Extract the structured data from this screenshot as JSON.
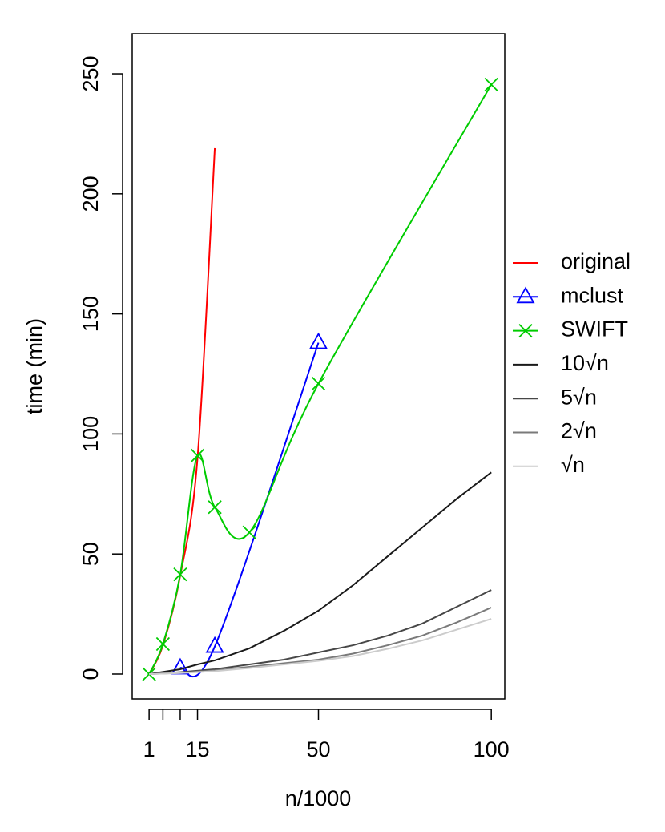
{
  "chart_data": {
    "type": "line",
    "xlabel": "n/1000",
    "ylabel": "time (min)",
    "xlim": [
      -3.9,
      103.9
    ],
    "ylim": [
      -10.35,
      266.7
    ],
    "xticks": [
      1,
      {
        "value": 5,
        "label": null
      },
      {
        "value": 10,
        "label": null
      },
      15,
      50,
      100
    ],
    "yticks": [
      0,
      50,
      100,
      150,
      200,
      250
    ],
    "legend": "right",
    "series": [
      {
        "name": "original",
        "color": "#ff0000",
        "smooth": true,
        "x": [
          1,
          5,
          10,
          15,
          20
        ],
        "values": [
          0,
          12,
          41,
          90,
          219
        ]
      },
      {
        "name": "mclust",
        "color": "#0000ff",
        "smooth": true,
        "marker": "triangle",
        "x": [
          10,
          20,
          50
        ],
        "values": [
          2.5,
          11.5,
          138
        ]
      },
      {
        "name": "SWIFT",
        "color": "#00cc00",
        "smooth": true,
        "marker": "x",
        "x": [
          1,
          5,
          10,
          15,
          20,
          30,
          50,
          100
        ],
        "values": [
          0,
          12.5,
          41.5,
          91,
          69.5,
          59,
          121,
          245.5
        ]
      },
      {
        "name": "10√n",
        "color": "#1a1a1a",
        "x": [
          1,
          10,
          15,
          20,
          30,
          40,
          50,
          60,
          70,
          80,
          90,
          100
        ],
        "values": [
          0,
          2,
          4,
          5.7,
          10.7,
          18,
          26.4,
          37,
          49,
          61,
          73,
          84
        ]
      },
      {
        "name": "5√n",
        "color": "#474747",
        "x": [
          1,
          10,
          20,
          30,
          40,
          50,
          60,
          70,
          80,
          90,
          100
        ],
        "values": [
          0,
          0.8,
          2,
          4,
          6,
          9,
          12,
          16,
          21,
          28,
          35
        ]
      },
      {
        "name": "2√n",
        "color": "#7a7a7a",
        "x": [
          1,
          10,
          20,
          30,
          40,
          50,
          60,
          70,
          80,
          90,
          100
        ],
        "values": [
          0,
          0.5,
          1.5,
          3,
          4.5,
          6,
          8.5,
          12,
          16,
          21.5,
          27.7
        ]
      },
      {
        "name": "√n",
        "color": "#cccccc",
        "x": [
          1,
          10,
          20,
          30,
          40,
          50,
          60,
          70,
          80,
          90,
          100
        ],
        "values": [
          0,
          0.4,
          1.2,
          2.5,
          4,
          5.5,
          7.5,
          10.5,
          14,
          18.5,
          23
        ]
      }
    ]
  }
}
